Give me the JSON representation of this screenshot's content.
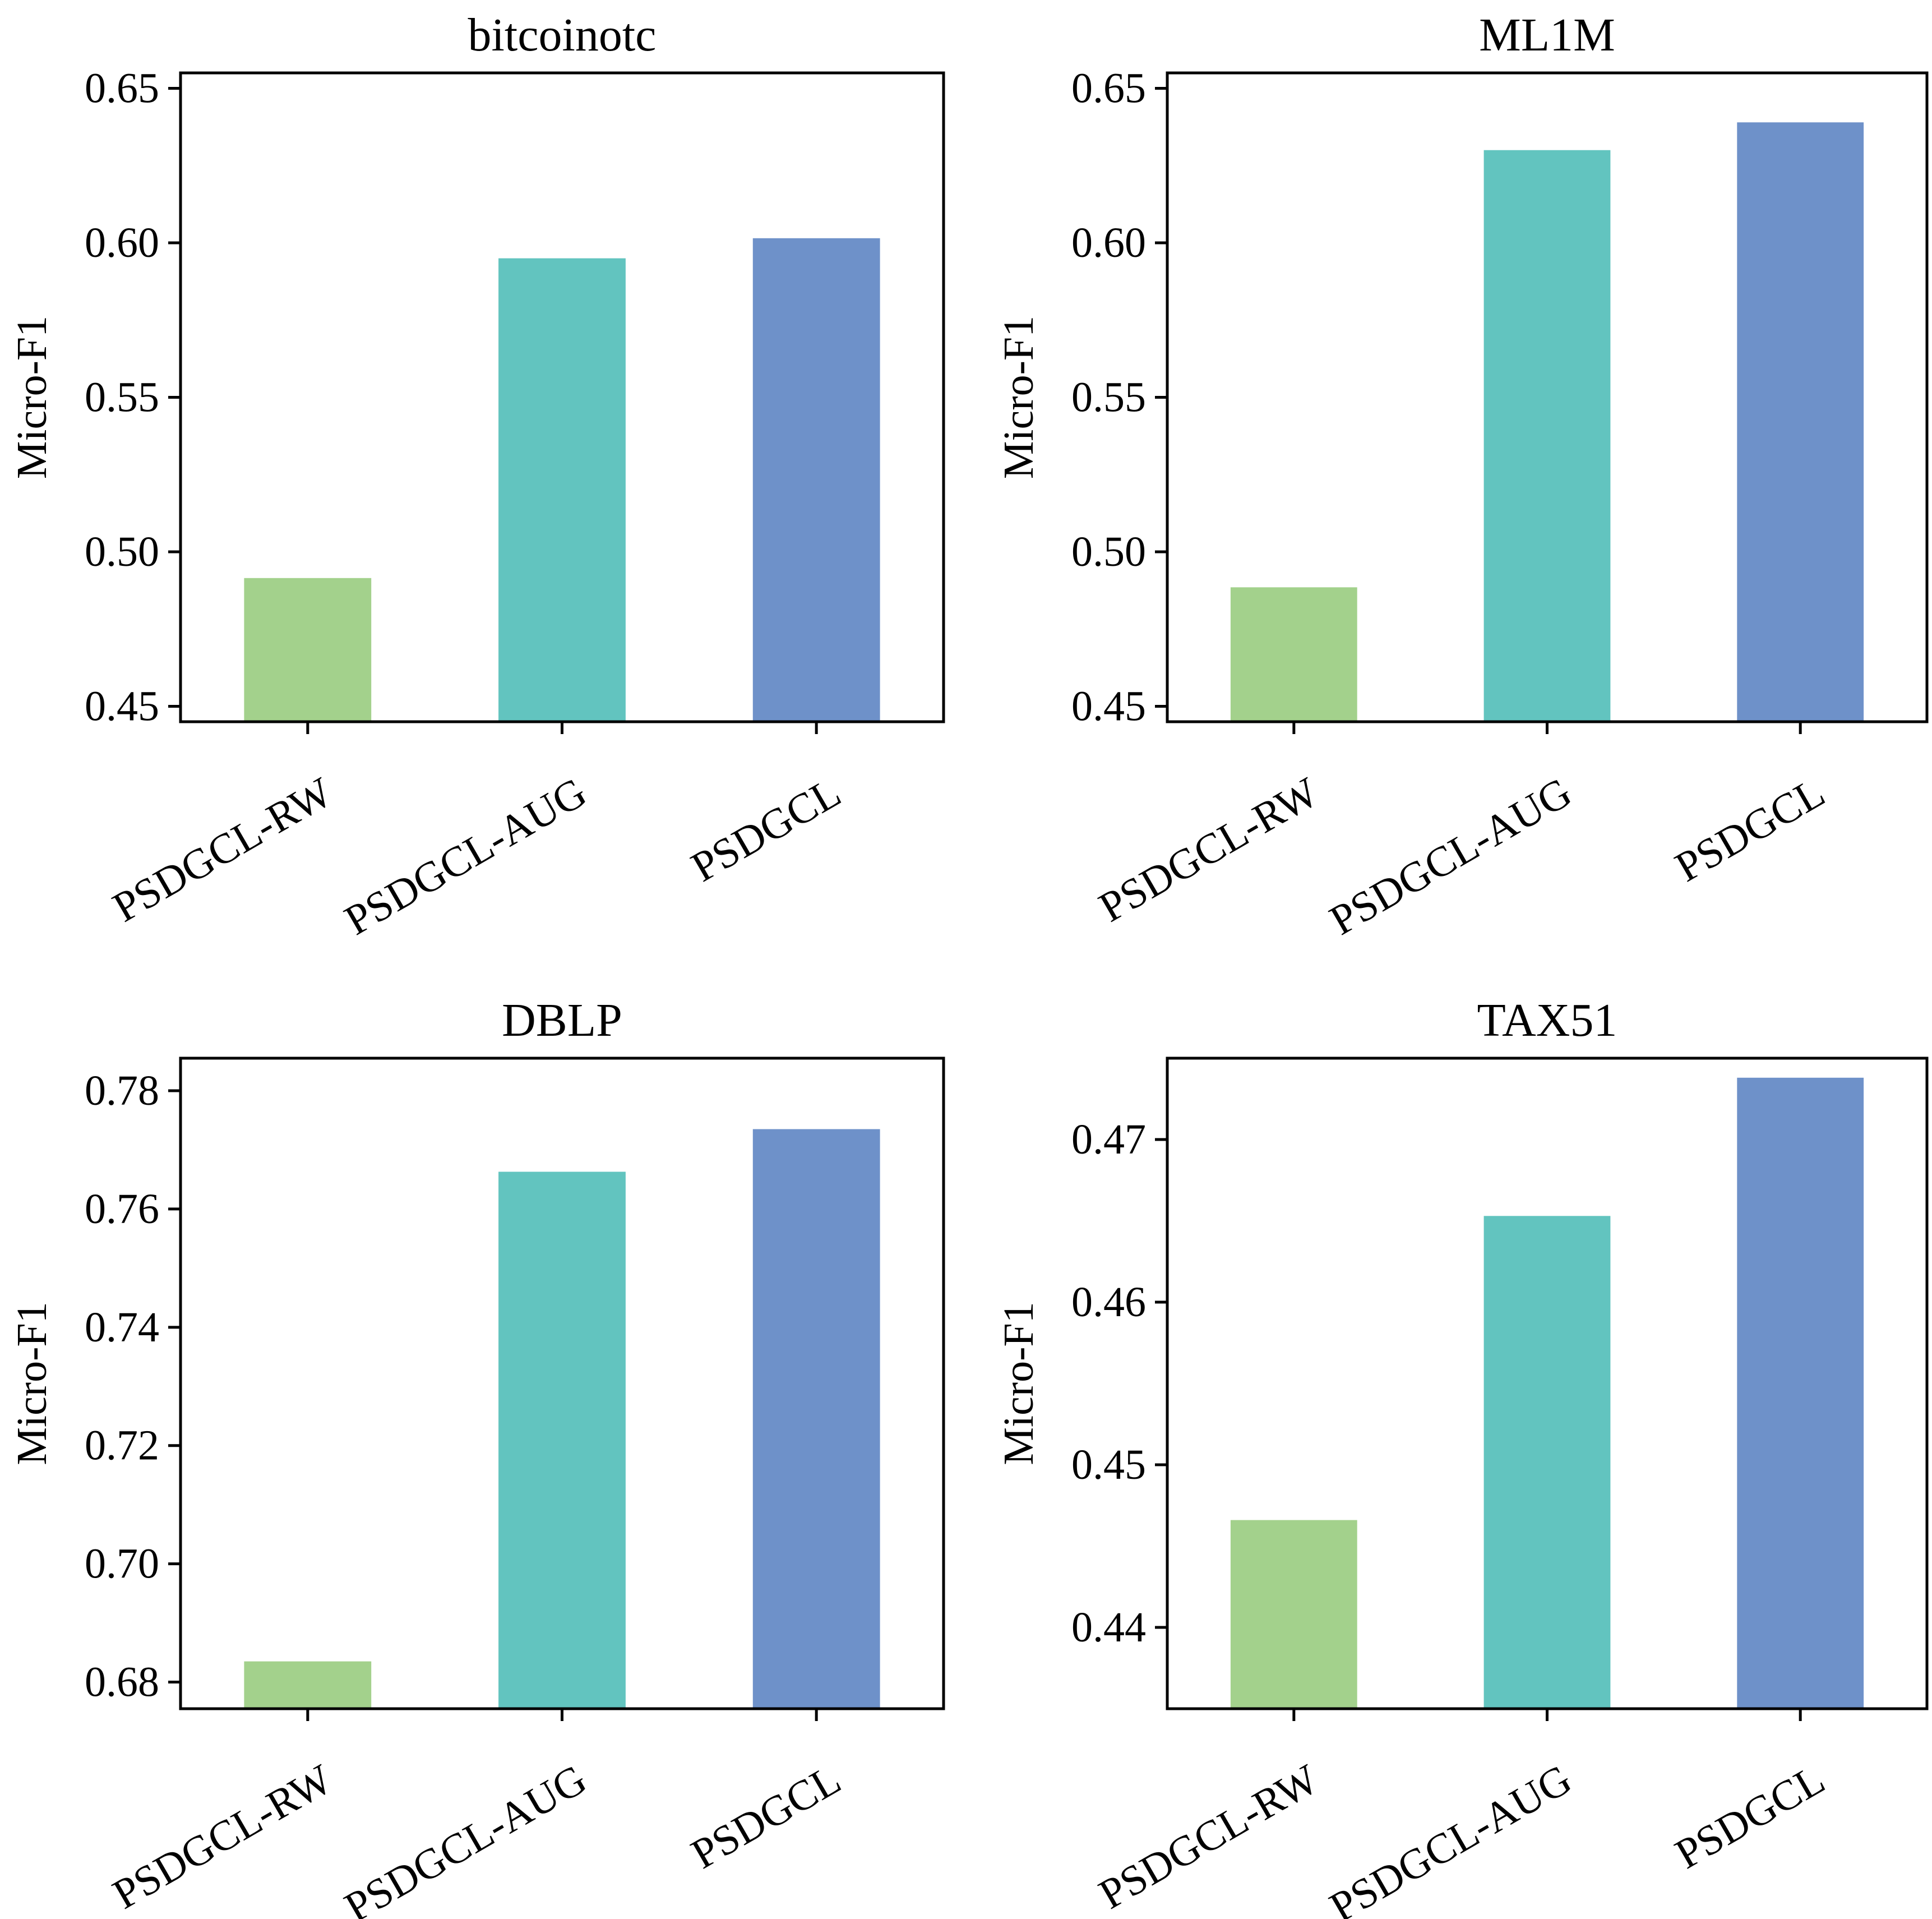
{
  "chart_data": [
    {
      "type": "bar",
      "title": "bitcoinotc",
      "ylabel": "Micro-F1",
      "xlabel": "",
      "categories": [
        "PSDGCL-RW",
        "PSDGCL-AUG",
        "PSDGCL"
      ],
      "values": [
        0.4915,
        0.595,
        0.6015
      ],
      "ylim": [
        0.445,
        0.655
      ],
      "yticks": [
        0.45,
        0.5,
        0.55,
        0.6,
        0.65
      ],
      "ytick_labels": [
        "0.45",
        "0.50",
        "0.55",
        "0.60",
        "0.65"
      ],
      "grid": false
    },
    {
      "type": "bar",
      "title": "ML1M",
      "ylabel": "Micro-F1",
      "xlabel": "",
      "categories": [
        "PSDGCL-RW",
        "PSDGCL-AUG",
        "PSDGCL"
      ],
      "values": [
        0.4885,
        0.63,
        0.639
      ],
      "ylim": [
        0.445,
        0.655
      ],
      "yticks": [
        0.45,
        0.5,
        0.55,
        0.6,
        0.65
      ],
      "ytick_labels": [
        "0.45",
        "0.50",
        "0.55",
        "0.60",
        "0.65"
      ],
      "grid": false
    },
    {
      "type": "bar",
      "title": "DBLP",
      "ylabel": "Micro-F1",
      "xlabel": "",
      "categories": [
        "PSDGCL-RW",
        "PSDGCL-AUG",
        "PSDGCL"
      ],
      "values": [
        0.6835,
        0.7663,
        0.7735
      ],
      "ylim": [
        0.6755,
        0.7855
      ],
      "yticks": [
        0.68,
        0.7,
        0.72,
        0.74,
        0.76,
        0.78
      ],
      "ytick_labels": [
        "0.68",
        "0.70",
        "0.72",
        "0.74",
        "0.76",
        "0.78"
      ],
      "grid": false
    },
    {
      "type": "bar",
      "title": "TAX51",
      "ylabel": "Micro-F1",
      "xlabel": "",
      "categories": [
        "PSDGCL-RW",
        "PSDGCL-AUG",
        "PSDGCL"
      ],
      "values": [
        0.4466,
        0.4653,
        0.4738
      ],
      "ylim": [
        0.435,
        0.475
      ],
      "yticks": [
        0.44,
        0.45,
        0.46,
        0.47
      ],
      "ytick_labels": [
        "0.44",
        "0.45",
        "0.46",
        "0.47"
      ],
      "grid": false
    }
  ],
  "colors": {
    "bar_colors": [
      "#a3d18c",
      "#62c4bf",
      "#6e91c9"
    ],
    "axis": "#000000"
  }
}
